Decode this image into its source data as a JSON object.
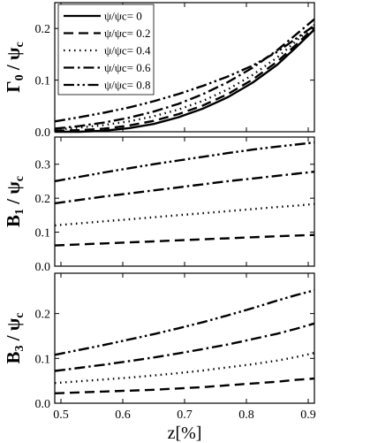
{
  "chart_data": [
    {
      "type": "line",
      "ylabel": "Γ0 / ψc",
      "ylim": [
        0,
        0.25
      ],
      "yticks": [
        "0.0",
        "0.1",
        "0.2"
      ],
      "xlim": [
        0.49,
        0.91
      ],
      "legend": {
        "placement": "top-left",
        "entries": [
          "ψ/ψc= 0",
          "ψ/ψc= 0.2",
          "ψ/ψc= 0.4",
          "ψ/ψc= 0.6",
          "ψ/ψc= 0.8"
        ]
      },
      "x": [
        0.49,
        0.53,
        0.57,
        0.61,
        0.65,
        0.69,
        0.73,
        0.77,
        0.81,
        0.85,
        0.88,
        0.91
      ],
      "series": [
        {
          "name": "ψ/ψc= 0",
          "style": "solid",
          "values": [
            0.0,
            0.0,
            0.002,
            0.007,
            0.015,
            0.028,
            0.045,
            0.067,
            0.095,
            0.13,
            0.163,
            0.198
          ]
        },
        {
          "name": "ψ/ψc= 0.2",
          "style": "dashed",
          "values": [
            0.002,
            0.003,
            0.006,
            0.012,
            0.021,
            0.034,
            0.051,
            0.073,
            0.101,
            0.136,
            0.168,
            0.202
          ]
        },
        {
          "name": "ψ/ψc= 0.4",
          "style": "dotted",
          "values": [
            0.004,
            0.008,
            0.013,
            0.02,
            0.03,
            0.043,
            0.06,
            0.082,
            0.11,
            0.144,
            0.175,
            0.207
          ]
        },
        {
          "name": "ψ/ψc= 0.6",
          "style": "dash-dot",
          "values": [
            0.006,
            0.011,
            0.018,
            0.027,
            0.039,
            0.054,
            0.073,
            0.096,
            0.124,
            0.158,
            0.188,
            0.218
          ]
        },
        {
          "name": "ψ/ψc= 0.8",
          "style": "dash-dot-dot",
          "values": [
            0.02,
            0.028,
            0.037,
            0.047,
            0.059,
            0.073,
            0.089,
            0.107,
            0.128,
            0.155,
            0.18,
            0.206
          ]
        }
      ]
    },
    {
      "type": "line",
      "ylabel": "B1 / ψc",
      "ylim": [
        0,
        0.38
      ],
      "yticks": [
        "0.0",
        "0.1",
        "0.2",
        "0.3"
      ],
      "xlim": [
        0.49,
        0.91
      ],
      "x": [
        0.49,
        0.53,
        0.57,
        0.61,
        0.65,
        0.69,
        0.73,
        0.77,
        0.81,
        0.85,
        0.88,
        0.91
      ],
      "series": [
        {
          "name": "ψ/ψc= 0.2",
          "style": "dashed",
          "values": [
            0.061,
            0.064,
            0.067,
            0.07,
            0.073,
            0.076,
            0.079,
            0.082,
            0.085,
            0.088,
            0.09,
            0.092
          ]
        },
        {
          "name": "ψ/ψc= 0.4",
          "style": "dotted",
          "values": [
            0.12,
            0.126,
            0.132,
            0.138,
            0.144,
            0.15,
            0.156,
            0.162,
            0.168,
            0.174,
            0.178,
            0.183
          ]
        },
        {
          "name": "ψ/ψc= 0.6",
          "style": "dash-dot",
          "values": [
            0.185,
            0.195,
            0.205,
            0.214,
            0.223,
            0.232,
            0.241,
            0.25,
            0.258,
            0.266,
            0.272,
            0.278
          ]
        },
        {
          "name": "ψ/ψc= 0.8",
          "style": "dash-dot-dot",
          "values": [
            0.25,
            0.263,
            0.276,
            0.288,
            0.3,
            0.311,
            0.322,
            0.333,
            0.343,
            0.352,
            0.358,
            0.364
          ]
        }
      ]
    },
    {
      "type": "line",
      "ylabel": "B3 / ψc",
      "xlabel": "z[%]",
      "ylim": [
        0,
        0.29
      ],
      "yticks": [
        "0.0",
        "0.1",
        "0.2"
      ],
      "xticks": [
        "0.5",
        "0.6",
        "0.7",
        "0.8",
        "0.9"
      ],
      "xtick_values": [
        0.5,
        0.6,
        0.7,
        0.8,
        0.9
      ],
      "xlim": [
        0.49,
        0.91
      ],
      "x": [
        0.49,
        0.53,
        0.57,
        0.61,
        0.65,
        0.69,
        0.73,
        0.77,
        0.81,
        0.85,
        0.88,
        0.91
      ],
      "series": [
        {
          "name": "ψ/ψc= 0.2",
          "style": "dashed",
          "values": [
            0.022,
            0.024,
            0.026,
            0.028,
            0.03,
            0.033,
            0.036,
            0.04,
            0.044,
            0.048,
            0.052,
            0.055
          ]
        },
        {
          "name": "ψ/ψc= 0.4",
          "style": "dotted",
          "values": [
            0.045,
            0.049,
            0.053,
            0.057,
            0.062,
            0.067,
            0.073,
            0.08,
            0.087,
            0.095,
            0.103,
            0.112
          ]
        },
        {
          "name": "ψ/ψc= 0.6",
          "style": "dash-dot",
          "values": [
            0.072,
            0.079,
            0.086,
            0.094,
            0.102,
            0.111,
            0.121,
            0.131,
            0.143,
            0.155,
            0.166,
            0.178
          ]
        },
        {
          "name": "ψ/ψc= 0.8",
          "style": "dash-dot-dot",
          "values": [
            0.108,
            0.119,
            0.13,
            0.142,
            0.154,
            0.167,
            0.181,
            0.196,
            0.212,
            0.229,
            0.241,
            0.252
          ]
        }
      ]
    }
  ]
}
